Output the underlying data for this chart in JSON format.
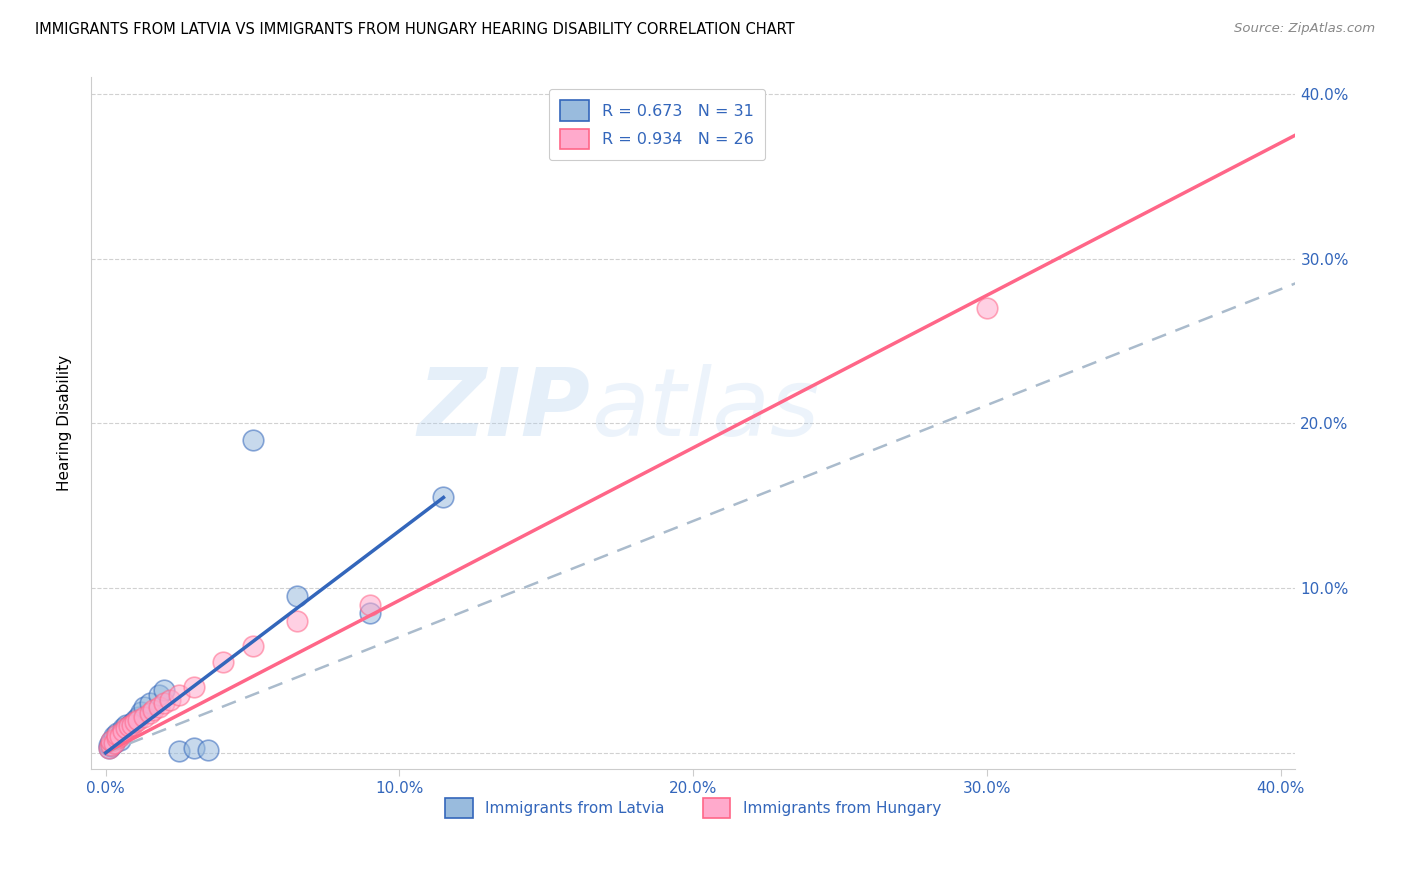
{
  "title": "IMMIGRANTS FROM LATVIA VS IMMIGRANTS FROM HUNGARY HEARING DISABILITY CORRELATION CHART",
  "source": "Source: ZipAtlas.com",
  "ylabel": "Hearing Disability",
  "yticks": [
    0.0,
    0.1,
    0.2,
    0.3,
    0.4
  ],
  "xticks": [
    0.0,
    0.1,
    0.2,
    0.3,
    0.4
  ],
  "xlim": [
    -0.005,
    0.405
  ],
  "ylim": [
    -0.01,
    0.41
  ],
  "color_latvia": "#99BBDD",
  "color_hungary": "#FFAACC",
  "color_latvia_line": "#3366BB",
  "color_hungary_line": "#FF6688",
  "color_dashed": "#AABBCC",
  "watermark_zip": "ZIP",
  "watermark_atlas": "atlas",
  "latvia_x": [
    0.001,
    0.001,
    0.002,
    0.002,
    0.003,
    0.003,
    0.003,
    0.004,
    0.004,
    0.005,
    0.005,
    0.006,
    0.006,
    0.007,
    0.007,
    0.008,
    0.009,
    0.01,
    0.011,
    0.012,
    0.013,
    0.015,
    0.018,
    0.02,
    0.025,
    0.03,
    0.035,
    0.05,
    0.065,
    0.09,
    0.115
  ],
  "latvia_y": [
    0.003,
    0.005,
    0.004,
    0.007,
    0.006,
    0.008,
    0.01,
    0.009,
    0.012,
    0.008,
    0.011,
    0.013,
    0.015,
    0.014,
    0.017,
    0.016,
    0.018,
    0.02,
    0.022,
    0.025,
    0.028,
    0.03,
    0.035,
    0.038,
    0.001,
    0.003,
    0.002,
    0.19,
    0.095,
    0.085,
    0.155
  ],
  "hungary_x": [
    0.001,
    0.002,
    0.002,
    0.003,
    0.004,
    0.004,
    0.005,
    0.006,
    0.007,
    0.008,
    0.009,
    0.01,
    0.011,
    0.013,
    0.015,
    0.016,
    0.018,
    0.02,
    0.022,
    0.025,
    0.03,
    0.04,
    0.05,
    0.065,
    0.3,
    0.09
  ],
  "hungary_y": [
    0.003,
    0.005,
    0.007,
    0.006,
    0.009,
    0.011,
    0.01,
    0.013,
    0.015,
    0.016,
    0.017,
    0.019,
    0.02,
    0.022,
    0.024,
    0.026,
    0.028,
    0.03,
    0.032,
    0.035,
    0.04,
    0.055,
    0.065,
    0.08,
    0.27,
    0.09
  ],
  "lv_line_x": [
    0.0,
    0.115
  ],
  "lv_line_y": [
    0.0,
    0.155
  ],
  "hu_line_x": [
    0.0,
    0.405
  ],
  "hu_line_y": [
    0.0,
    0.375
  ],
  "dashed_line_x": [
    0.0,
    0.405
  ],
  "dashed_line_y": [
    0.0,
    0.285
  ]
}
